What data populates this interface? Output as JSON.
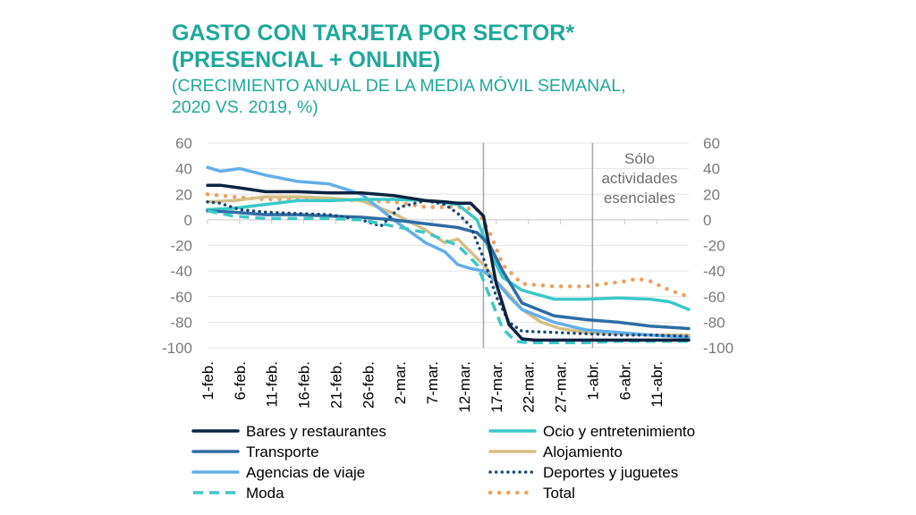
{
  "header": {
    "title_lines": [
      "GASTO CON TARJETA POR SECTOR*",
      "(PRESENCIAL + ONLINE)"
    ],
    "subtitle_lines": [
      "(CRECIMIENTO ANUAL DE LA MEDIA MÓVIL SEMANAL,",
      "2020 VS. 2019, %)"
    ]
  },
  "chart_data": {
    "type": "line",
    "title": "GASTO CON TARJETA POR SECTOR* (PRESENCIAL + ONLINE)",
    "subtitle": "(CRECIMIENTO ANUAL DE LA MEDIA MÓVIL SEMANAL, 2020 VS. 2019, %)",
    "ylim": [
      -100,
      60
    ],
    "yticks": [
      60,
      40,
      20,
      0,
      -20,
      -40,
      -60,
      -80,
      -100
    ],
    "day_range": [
      1,
      76
    ],
    "xtick_days": [
      1,
      6,
      11,
      16,
      21,
      26,
      31,
      36,
      41,
      46,
      51,
      56,
      61,
      66,
      71
    ],
    "xtick_labels": [
      "1-feb.",
      "6-feb.",
      "11-feb.",
      "16-feb.",
      "21-feb.",
      "26-feb.",
      "2-mar.",
      "7-mar.",
      "12-mar.",
      "17-mar.",
      "22-mar.",
      "27-mar.",
      "1-abr.",
      "6-abr.",
      "11-abr."
    ],
    "vlines_days": [
      44,
      61
    ],
    "annotation": [
      "Sólo",
      "actividades",
      "esenciales"
    ],
    "legend_position": "bottom",
    "series": [
      {
        "name": "Bares y restaurantes",
        "color": "#0c2340",
        "style": "solid",
        "days": [
          1,
          3,
          6,
          10,
          15,
          20,
          25,
          30,
          35,
          38,
          40,
          42,
          44,
          46,
          48,
          50,
          52,
          76
        ],
        "values": [
          27,
          27,
          25,
          22,
          22,
          21,
          21,
          19,
          15,
          14,
          13,
          13,
          3,
          -50,
          -82,
          -93,
          -94,
          -94
        ]
      },
      {
        "name": "Ocio y entretenimiento",
        "color": "#3cc8c8",
        "style": "solid",
        "days": [
          1,
          5,
          10,
          15,
          20,
          25,
          30,
          35,
          40,
          43,
          45,
          47,
          50,
          55,
          60,
          65,
          70,
          73,
          76
        ],
        "values": [
          8,
          9,
          12,
          15,
          15,
          16,
          16,
          15,
          12,
          0,
          -25,
          -45,
          -55,
          -62,
          -62,
          -61,
          -62,
          -64,
          -70
        ]
      },
      {
        "name": "Transporte",
        "color": "#2e6da4",
        "style": "solid",
        "days": [
          1,
          5,
          10,
          15,
          20,
          25,
          30,
          35,
          40,
          43,
          45,
          47,
          50,
          55,
          60,
          65,
          70,
          76
        ],
        "values": [
          7,
          6,
          4,
          4,
          3,
          2,
          0,
          -3,
          -6,
          -10,
          -20,
          -40,
          -65,
          -75,
          -78,
          -80,
          -83,
          -85
        ]
      },
      {
        "name": "Alojamiento",
        "color": "#d4bf85",
        "style": "solid",
        "days": [
          1,
          5,
          10,
          15,
          20,
          25,
          30,
          35,
          38,
          40,
          42,
          44,
          46,
          48,
          50,
          53,
          56,
          60,
          65,
          70,
          76
        ],
        "values": [
          14,
          15,
          18,
          18,
          17,
          15,
          5,
          -8,
          -18,
          -15,
          -25,
          -35,
          -48,
          -58,
          -70,
          -80,
          -85,
          -88,
          -89,
          -90,
          -90
        ]
      },
      {
        "name": "Agencias de viaje",
        "color": "#63aee8",
        "style": "solid",
        "days": [
          1,
          3,
          6,
          10,
          15,
          20,
          25,
          28,
          30,
          35,
          38,
          40,
          42,
          44,
          46,
          48,
          50,
          55,
          60,
          65,
          70,
          76
        ],
        "values": [
          41,
          38,
          40,
          35,
          30,
          28,
          20,
          8,
          0,
          -18,
          -25,
          -35,
          -38,
          -40,
          -48,
          -60,
          -70,
          -80,
          -86,
          -88,
          -90,
          -92
        ]
      },
      {
        "name": "Deportes y juguetes",
        "color": "#1a4a7a",
        "style": "dotted",
        "days": [
          1,
          3,
          6,
          10,
          15,
          20,
          25,
          28,
          31,
          35,
          38,
          40,
          42,
          44,
          46,
          48,
          50,
          55,
          60,
          65,
          70,
          76
        ],
        "values": [
          14,
          13,
          8,
          6,
          5,
          4,
          0,
          -5,
          10,
          15,
          12,
          5,
          -5,
          -30,
          -60,
          -80,
          -87,
          -88,
          -89,
          -90,
          -90,
          -91
        ]
      },
      {
        "name": "Moda",
        "color": "#3cc8c8",
        "style": "dashed",
        "days": [
          1,
          5,
          10,
          15,
          20,
          25,
          30,
          35,
          40,
          43,
          45,
          47,
          49,
          51,
          55,
          60,
          65,
          70,
          76
        ],
        "values": [
          7,
          3,
          1,
          1,
          1,
          0,
          -5,
          -10,
          -20,
          -35,
          -60,
          -85,
          -95,
          -96,
          -96,
          -96,
          -95,
          -95,
          -95
        ]
      },
      {
        "name": "Total",
        "color": "#f0a060",
        "style": "dotted-big",
        "days": [
          1,
          5,
          10,
          15,
          20,
          25,
          30,
          35,
          40,
          43,
          45,
          47,
          50,
          55,
          60,
          63,
          66,
          68,
          70,
          73,
          76
        ],
        "values": [
          20,
          18,
          16,
          16,
          16,
          15,
          14,
          10,
          10,
          8,
          -10,
          -35,
          -50,
          -52,
          -52,
          -50,
          -48,
          -46,
          -48,
          -55,
          -60
        ]
      }
    ]
  }
}
